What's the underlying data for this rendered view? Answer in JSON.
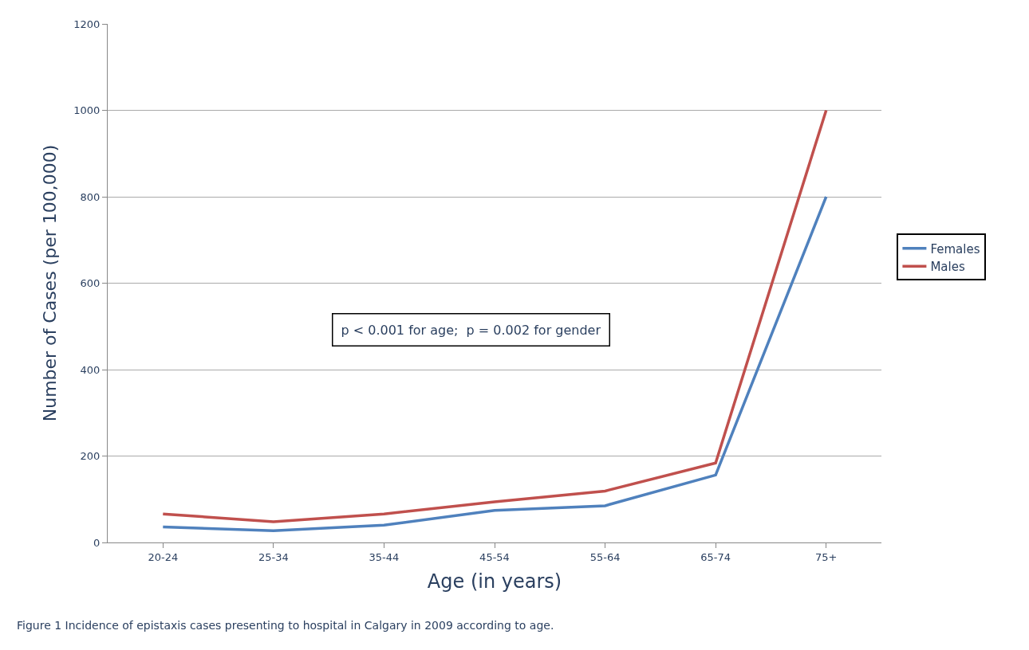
{
  "chart_data": {
    "type": "line",
    "categories": [
      "20-24",
      "25-34",
      "35-44",
      "45-54",
      "55-64",
      "65-74",
      "75+"
    ],
    "series": [
      {
        "name": "Females",
        "color": "#4f81bd",
        "values": [
          36,
          27,
          40,
          74,
          85,
          156,
          800
        ]
      },
      {
        "name": "Males",
        "color": "#c0504d",
        "values": [
          66,
          48,
          66,
          94,
          119,
          184,
          1000
        ]
      }
    ],
    "ylim": [
      0,
      1200
    ],
    "yticks": [
      0,
      200,
      400,
      600,
      800,
      1000,
      1200
    ],
    "xlabel": "Age (in years)",
    "ylabel": "Number of Cases (per 100,000)",
    "annotations": [
      "p < 0.001 for age;  p = 0.002 for gender",
      "Figure 1 Incidence of epistaxis cases presenting to hospital in Calgary in 2009 according to age."
    ],
    "grid": "y",
    "legend": "right",
    "marker": "none",
    "line_style": "solid"
  }
}
